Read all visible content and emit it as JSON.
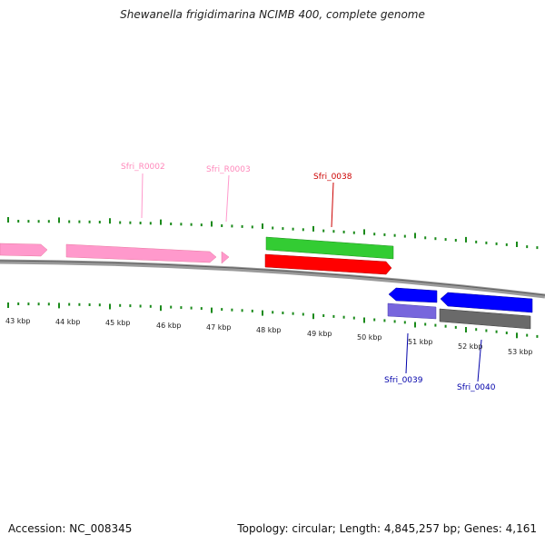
{
  "title": "Shewanella frigidimarina NCIMB 400, complete genome",
  "footer": {
    "accession": "Accession: NC_008345",
    "summary": "Topology: circular; Length: 4,845,257 bp; Genes: 4,161"
  },
  "colors": {
    "ruler_ticks": "#1a8a1a",
    "backbone": "#777777",
    "rrna": "#ff99cc",
    "cds_green": "#33cc33",
    "cds_red": "#ff0000",
    "cds_blue": "#0000ff",
    "cds_lavender": "#7766dd",
    "cds_gray": "#666666",
    "label_pink": "#ff88bb",
    "label_red": "#cc0000",
    "label_blue": "#0000aa"
  },
  "scale": {
    "unit": "kbp",
    "labels": [
      "43 kbp",
      "44 kbp",
      "45 kbp",
      "46 kbp",
      "47 kbp",
      "48 kbp",
      "49 kbp",
      "50 kbp",
      "51 kbp",
      "52 kbp",
      "53 kbp"
    ]
  },
  "gene_labels": [
    {
      "name": "Sfri_R0002",
      "color": "label_pink"
    },
    {
      "name": "Sfri_R0003",
      "color": "label_pink"
    },
    {
      "name": "Sfri_0038",
      "color": "label_red"
    },
    {
      "name": "Sfri_0039",
      "color": "label_blue"
    },
    {
      "name": "Sfri_0040",
      "color": "label_blue"
    }
  ]
}
